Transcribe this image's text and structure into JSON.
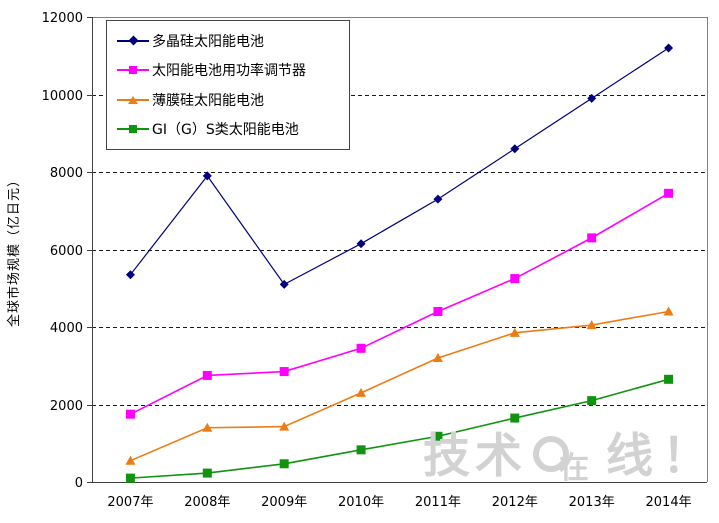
{
  "chart_data": {
    "type": "line",
    "title": "",
    "xlabel": "",
    "ylabel": "全球市场规模（亿日元）",
    "categories": [
      "2007年",
      "2008年",
      "2009年",
      "2010年",
      "2011年",
      "2012年",
      "2013年",
      "2014年"
    ],
    "ylim": [
      0,
      12000
    ],
    "yticks": [
      0,
      2000,
      4000,
      6000,
      8000,
      10000,
      12000
    ],
    "grid": "horizontal-dashed",
    "legend_position": "top-left-inside",
    "series": [
      {
        "name": "多晶硅太阳能电池",
        "color": "#00007D",
        "marker": "diamond",
        "values": [
          5350,
          7900,
          5100,
          6150,
          7300,
          8600,
          9900,
          11200
        ]
      },
      {
        "name": "太阳能电池用功率调节器",
        "color": "#FF00FF",
        "marker": "square",
        "values": [
          1750,
          2750,
          2850,
          3450,
          4400,
          5250,
          6300,
          7450
        ]
      },
      {
        "name": "薄膜硅太阳能电池",
        "color": "#ED7C14",
        "marker": "triangle",
        "values": [
          550,
          1400,
          1430,
          2300,
          3200,
          3850,
          4050,
          4400
        ]
      },
      {
        "name": "GI（G）S类太阳能电池",
        "color": "#109410",
        "marker": "square",
        "values": [
          100,
          230,
          470,
          830,
          1180,
          1650,
          2100,
          2650
        ]
      }
    ]
  },
  "watermark": {
    "text": "技术在线！"
  }
}
